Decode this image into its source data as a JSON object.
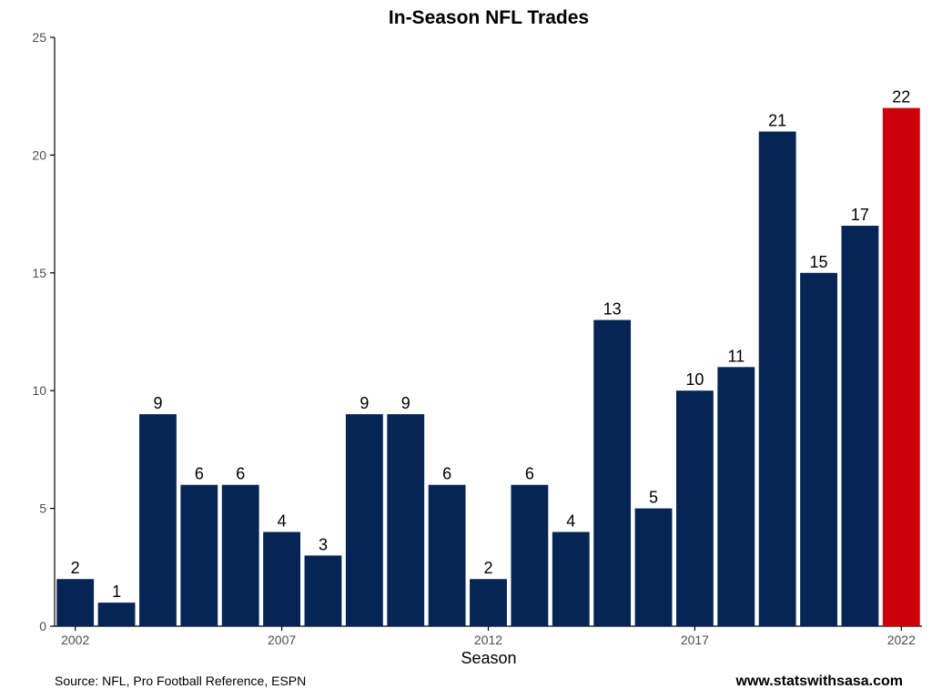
{
  "chart_data": {
    "type": "bar",
    "title": "In-Season NFL Trades",
    "xlabel": "Season",
    "ylabel": "",
    "ylim": [
      0,
      25
    ],
    "y_ticks": [
      0,
      5,
      10,
      15,
      20,
      25
    ],
    "x_ticks": [
      2002,
      2007,
      2012,
      2017,
      2022
    ],
    "categories": [
      2002,
      2003,
      2004,
      2005,
      2006,
      2007,
      2008,
      2009,
      2010,
      2011,
      2012,
      2013,
      2014,
      2015,
      2016,
      2017,
      2018,
      2019,
      2020,
      2021,
      2022
    ],
    "values": [
      2,
      1,
      9,
      6,
      6,
      4,
      3,
      9,
      9,
      6,
      2,
      6,
      4,
      13,
      5,
      10,
      11,
      21,
      15,
      17,
      22
    ],
    "data_labels": [
      "2",
      "1",
      "9",
      "6",
      "6",
      "4",
      "3",
      "9",
      "9",
      "6",
      "2",
      "6",
      "4",
      "13",
      "5",
      "10",
      "11",
      "21",
      "15",
      "17",
      "22"
    ],
    "highlight_category": 2022,
    "colors": {
      "bar": "#052555",
      "highlight": "#cc0009",
      "axis": "#000000",
      "tick_text": "#4d4d4d"
    },
    "grid": false,
    "legend": "none"
  },
  "caption": {
    "source": "Source: NFL, Pro Football Reference, ESPN",
    "credit": "www.statswithsasa.com"
  }
}
